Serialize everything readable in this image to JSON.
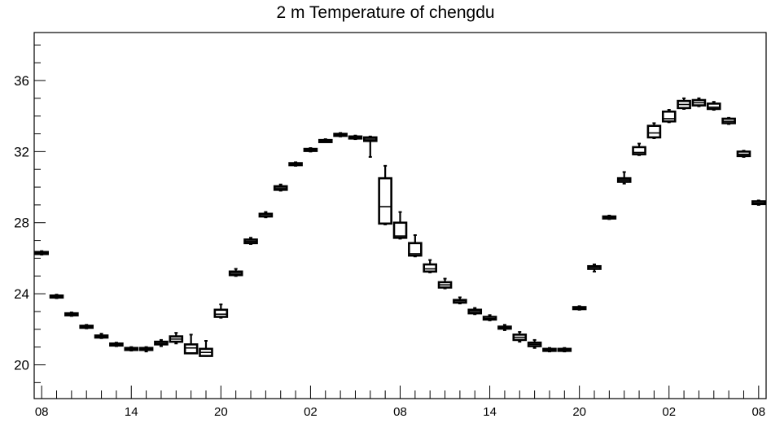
{
  "chart_data": {
    "type": "boxplot",
    "title": "2 m Temperature of chengdu",
    "xlabel": "",
    "ylabel": "",
    "ylim": [
      18.1,
      38.7
    ],
    "y_major_ticks": [
      20,
      24,
      28,
      32,
      36
    ],
    "y_minor_step": 1,
    "x_tick_labels": [
      "08",
      "14",
      "20",
      "02",
      "08",
      "14",
      "20",
      "02",
      "08"
    ],
    "x_tick_hours": [
      0,
      6,
      12,
      18,
      24,
      30,
      36,
      42,
      48
    ],
    "x_range_hours": [
      -0.5,
      48.5
    ],
    "grid": false,
    "legend": "none",
    "boxes": [
      {
        "hour": 0,
        "min": 26.2,
        "q1": 26.25,
        "median": 26.3,
        "q3": 26.35,
        "max": 26.4
      },
      {
        "hour": 1,
        "min": 23.75,
        "q1": 23.8,
        "median": 23.85,
        "q3": 23.9,
        "max": 23.95
      },
      {
        "hour": 2,
        "min": 22.75,
        "q1": 22.8,
        "median": 22.85,
        "q3": 22.9,
        "max": 22.95
      },
      {
        "hour": 3,
        "min": 22.05,
        "q1": 22.1,
        "median": 22.15,
        "q3": 22.2,
        "max": 22.25
      },
      {
        "hour": 4,
        "min": 21.5,
        "q1": 21.55,
        "median": 21.6,
        "q3": 21.65,
        "max": 21.75
      },
      {
        "hour": 5,
        "min": 21.05,
        "q1": 21.1,
        "median": 21.15,
        "q3": 21.2,
        "max": 21.25
      },
      {
        "hour": 6,
        "min": 20.8,
        "q1": 20.85,
        "median": 20.9,
        "q3": 20.95,
        "max": 21.0
      },
      {
        "hour": 7,
        "min": 20.75,
        "q1": 20.85,
        "median": 20.9,
        "q3": 20.95,
        "max": 21.0
      },
      {
        "hour": 8,
        "min": 21.05,
        "q1": 21.15,
        "median": 21.2,
        "q3": 21.3,
        "max": 21.4
      },
      {
        "hour": 9,
        "min": 21.2,
        "q1": 21.3,
        "median": 21.45,
        "q3": 21.6,
        "max": 21.8
      },
      {
        "hour": 10,
        "min": 20.65,
        "q1": 20.65,
        "median": 20.95,
        "q3": 21.15,
        "max": 21.7
      },
      {
        "hour": 11,
        "min": 20.5,
        "q1": 20.5,
        "median": 20.7,
        "q3": 20.9,
        "max": 21.35
      },
      {
        "hour": 12,
        "min": 22.65,
        "q1": 22.7,
        "median": 22.85,
        "q3": 23.1,
        "max": 23.4
      },
      {
        "hour": 13,
        "min": 25.0,
        "q1": 25.05,
        "median": 25.15,
        "q3": 25.25,
        "max": 25.4
      },
      {
        "hour": 14,
        "min": 26.8,
        "q1": 26.85,
        "median": 26.95,
        "q3": 27.05,
        "max": 27.15
      },
      {
        "hour": 15,
        "min": 28.3,
        "q1": 28.35,
        "median": 28.45,
        "q3": 28.5,
        "max": 28.6
      },
      {
        "hour": 16,
        "min": 29.8,
        "q1": 29.85,
        "median": 29.95,
        "q3": 30.05,
        "max": 30.15
      },
      {
        "hour": 17,
        "min": 31.2,
        "q1": 31.25,
        "median": 31.3,
        "q3": 31.35,
        "max": 31.4
      },
      {
        "hour": 18,
        "min": 32.0,
        "q1": 32.05,
        "median": 32.1,
        "q3": 32.15,
        "max": 32.2
      },
      {
        "hour": 19,
        "min": 32.55,
        "q1": 32.6,
        "median": 32.65,
        "q3": 32.65,
        "max": 32.7
      },
      {
        "hour": 20,
        "min": 32.85,
        "q1": 32.9,
        "median": 32.95,
        "q3": 33.0,
        "max": 33.05
      },
      {
        "hour": 21,
        "min": 32.7,
        "q1": 32.75,
        "median": 32.8,
        "q3": 32.85,
        "max": 32.9
      },
      {
        "hour": 22,
        "min": 31.7,
        "q1": 32.6,
        "median": 32.7,
        "q3": 32.8,
        "max": 32.85
      },
      {
        "hour": 23,
        "min": 27.9,
        "q1": 27.95,
        "median": 28.9,
        "q3": 30.5,
        "max": 31.2
      },
      {
        "hour": 24,
        "min": 27.1,
        "q1": 27.15,
        "median": 27.25,
        "q3": 28.0,
        "max": 28.6
      },
      {
        "hour": 25,
        "min": 26.1,
        "q1": 26.15,
        "median": 26.25,
        "q3": 26.85,
        "max": 27.3
      },
      {
        "hour": 26,
        "min": 25.2,
        "q1": 25.25,
        "median": 25.4,
        "q3": 25.65,
        "max": 25.9
      },
      {
        "hour": 27,
        "min": 24.3,
        "q1": 24.35,
        "median": 24.5,
        "q3": 24.65,
        "max": 24.85
      },
      {
        "hour": 28,
        "min": 23.45,
        "q1": 23.5,
        "median": 23.6,
        "q3": 23.65,
        "max": 23.8
      },
      {
        "hour": 29,
        "min": 22.85,
        "q1": 22.9,
        "median": 23.0,
        "q3": 23.1,
        "max": 23.2
      },
      {
        "hour": 30,
        "min": 22.5,
        "q1": 22.55,
        "median": 22.6,
        "q3": 22.7,
        "max": 22.8
      },
      {
        "hour": 31,
        "min": 21.95,
        "q1": 22.05,
        "median": 22.1,
        "q3": 22.15,
        "max": 22.25
      },
      {
        "hour": 32,
        "min": 21.3,
        "q1": 21.4,
        "median": 21.55,
        "q3": 21.7,
        "max": 21.85
      },
      {
        "hour": 33,
        "min": 20.95,
        "q1": 21.05,
        "median": 21.15,
        "q3": 21.25,
        "max": 21.4
      },
      {
        "hour": 34,
        "min": 20.75,
        "q1": 20.8,
        "median": 20.85,
        "q3": 20.9,
        "max": 20.95
      },
      {
        "hour": 35,
        "min": 20.75,
        "q1": 20.8,
        "median": 20.85,
        "q3": 20.9,
        "max": 20.95
      },
      {
        "hour": 36,
        "min": 23.1,
        "q1": 23.15,
        "median": 23.2,
        "q3": 23.25,
        "max": 23.3
      },
      {
        "hour": 37,
        "min": 25.25,
        "q1": 25.4,
        "median": 25.5,
        "q3": 25.55,
        "max": 25.65
      },
      {
        "hour": 38,
        "min": 28.2,
        "q1": 28.25,
        "median": 28.3,
        "q3": 28.35,
        "max": 28.4
      },
      {
        "hour": 39,
        "min": 30.2,
        "q1": 30.3,
        "median": 30.4,
        "q3": 30.5,
        "max": 30.85
      },
      {
        "hour": 40,
        "min": 31.8,
        "q1": 31.85,
        "median": 31.95,
        "q3": 32.25,
        "max": 32.45
      },
      {
        "hour": 41,
        "min": 32.75,
        "q1": 32.8,
        "median": 33.05,
        "q3": 33.45,
        "max": 33.6
      },
      {
        "hour": 42,
        "min": 33.65,
        "q1": 33.7,
        "median": 33.85,
        "q3": 34.25,
        "max": 34.35
      },
      {
        "hour": 43,
        "min": 34.4,
        "q1": 34.45,
        "median": 34.65,
        "q3": 34.85,
        "max": 35.0
      },
      {
        "hour": 44,
        "min": 34.55,
        "q1": 34.6,
        "median": 34.75,
        "q3": 34.9,
        "max": 35.0
      },
      {
        "hour": 45,
        "min": 34.35,
        "q1": 34.4,
        "median": 34.5,
        "q3": 34.7,
        "max": 34.8
      },
      {
        "hour": 46,
        "min": 33.55,
        "q1": 33.6,
        "median": 33.7,
        "q3": 33.85,
        "max": 33.9
      },
      {
        "hour": 47,
        "min": 31.7,
        "q1": 31.75,
        "median": 31.85,
        "q3": 32.0,
        "max": 32.05
      },
      {
        "hour": 48,
        "min": 29.0,
        "q1": 29.05,
        "median": 29.1,
        "q3": 29.2,
        "max": 29.25
      }
    ]
  }
}
